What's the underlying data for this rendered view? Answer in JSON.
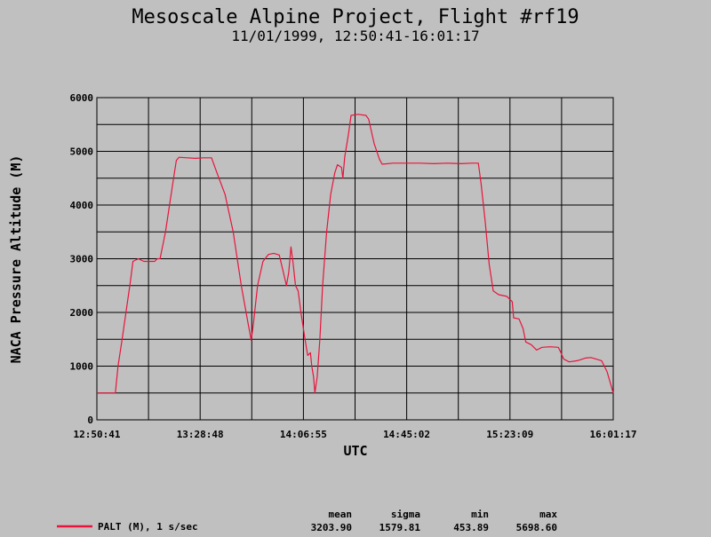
{
  "chart_data": {
    "type": "line",
    "title": "Mesoscale Alpine Project, Flight #rf19",
    "subtitle": "11/01/1999, 12:50:41-16:01:17",
    "xlabel": "UTC",
    "ylabel": "NACA Pressure Altitude (M)",
    "x_ticks": [
      "12:50:41",
      "13:28:48",
      "14:06:55",
      "14:45:02",
      "15:23:09",
      "16:01:17"
    ],
    "y_ticks": [
      "0",
      "1000",
      "2000",
      "3000",
      "4000",
      "5000",
      "6000"
    ],
    "xlim": [
      "12:50:41",
      "16:01:17"
    ],
    "ylim": [
      0,
      6000
    ],
    "grid": true,
    "series": [
      {
        "name": "PALT (M), 1 s/sec",
        "color": "#e8143c",
        "points": [
          [
            "12:50:41",
            500
          ],
          [
            "12:57:30",
            500
          ],
          [
            "12:58:30",
            1000
          ],
          [
            "13:00:00",
            1500
          ],
          [
            "13:03:00",
            2550
          ],
          [
            "13:04:00",
            2950
          ],
          [
            "13:06:00",
            3000
          ],
          [
            "13:08:00",
            2950
          ],
          [
            "13:12:00",
            2950
          ],
          [
            "13:13:00",
            3000
          ],
          [
            "13:14:00",
            3000
          ],
          [
            "13:16:00",
            3500
          ],
          [
            "13:19:00",
            4500
          ],
          [
            "13:20:00",
            4830
          ],
          [
            "13:21:00",
            4890
          ],
          [
            "13:24:00",
            4880
          ],
          [
            "13:27:00",
            4870
          ],
          [
            "13:30:00",
            4880
          ],
          [
            "13:33:00",
            4880
          ],
          [
            "13:35:00",
            4600
          ],
          [
            "13:38:00",
            4200
          ],
          [
            "13:41:00",
            3500
          ],
          [
            "13:44:00",
            2500
          ],
          [
            "13:46:30",
            1800
          ],
          [
            "13:47:40",
            1480
          ],
          [
            "13:48:30",
            1800
          ],
          [
            "13:50:00",
            2500
          ],
          [
            "13:52:00",
            2950
          ],
          [
            "13:54:00",
            3080
          ],
          [
            "13:56:00",
            3100
          ],
          [
            "13:58:00",
            3070
          ],
          [
            "13:59:30",
            2750
          ],
          [
            "14:00:40",
            2500
          ],
          [
            "14:01:30",
            2750
          ],
          [
            "14:02:20",
            3220
          ],
          [
            "14:03:10",
            2900
          ],
          [
            "14:04:00",
            2500
          ],
          [
            "14:05:00",
            2400
          ],
          [
            "14:06:00",
            2000
          ],
          [
            "14:07:30",
            1500
          ],
          [
            "14:08:30",
            1200
          ],
          [
            "14:09:30",
            1250
          ],
          [
            "14:10:00",
            1000
          ],
          [
            "14:10:40",
            800
          ],
          [
            "14:11:10",
            500
          ],
          [
            "14:12:00",
            800
          ],
          [
            "14:13:00",
            1500
          ],
          [
            "14:14:00",
            2500
          ],
          [
            "14:15:30",
            3500
          ],
          [
            "14:17:00",
            4200
          ],
          [
            "14:18:30",
            4600
          ],
          [
            "14:19:30",
            4750
          ],
          [
            "14:21:00",
            4700
          ],
          [
            "14:21:30",
            4500
          ],
          [
            "14:22:10",
            4900
          ],
          [
            "14:23:30",
            5300
          ],
          [
            "14:24:30",
            5670
          ],
          [
            "14:27:00",
            5690
          ],
          [
            "14:30:00",
            5670
          ],
          [
            "14:31:00",
            5600
          ],
          [
            "14:33:00",
            5150
          ],
          [
            "14:35:00",
            4850
          ],
          [
            "14:36:00",
            4760
          ],
          [
            "14:40:00",
            4780
          ],
          [
            "14:45:00",
            4780
          ],
          [
            "14:50:00",
            4780
          ],
          [
            "14:55:00",
            4770
          ],
          [
            "15:00:00",
            4780
          ],
          [
            "15:05:00",
            4770
          ],
          [
            "15:09:00",
            4780
          ],
          [
            "15:11:30",
            4780
          ],
          [
            "15:12:30",
            4400
          ],
          [
            "15:14:00",
            3700
          ],
          [
            "15:15:30",
            2900
          ],
          [
            "15:17:00",
            2400
          ],
          [
            "15:19:00",
            2330
          ],
          [
            "15:22:00",
            2300
          ],
          [
            "15:24:00",
            2200
          ],
          [
            "15:24:30",
            1900
          ],
          [
            "15:26:30",
            1880
          ],
          [
            "15:28:00",
            1700
          ],
          [
            "15:29:00",
            1450
          ],
          [
            "15:31:00",
            1400
          ],
          [
            "15:33:00",
            1300
          ],
          [
            "15:35:00",
            1350
          ],
          [
            "15:38:00",
            1360
          ],
          [
            "15:41:00",
            1350
          ],
          [
            "15:42:00",
            1250
          ],
          [
            "15:43:00",
            1130
          ],
          [
            "15:45:00",
            1080
          ],
          [
            "15:48:00",
            1100
          ],
          [
            "15:51:00",
            1150
          ],
          [
            "15:53:00",
            1160
          ],
          [
            "15:55:00",
            1130
          ],
          [
            "15:57:00",
            1100
          ],
          [
            "15:59:00",
            900
          ],
          [
            "16:01:17",
            500
          ]
        ]
      }
    ],
    "legend": {
      "placement": "bottom-left",
      "label": "PALT (M), 1 s/sec",
      "stats_headers": [
        "mean",
        "sigma",
        "min",
        "max"
      ],
      "stats_values": [
        "3203.90",
        "1579.81",
        "453.89",
        "5698.60"
      ]
    }
  }
}
